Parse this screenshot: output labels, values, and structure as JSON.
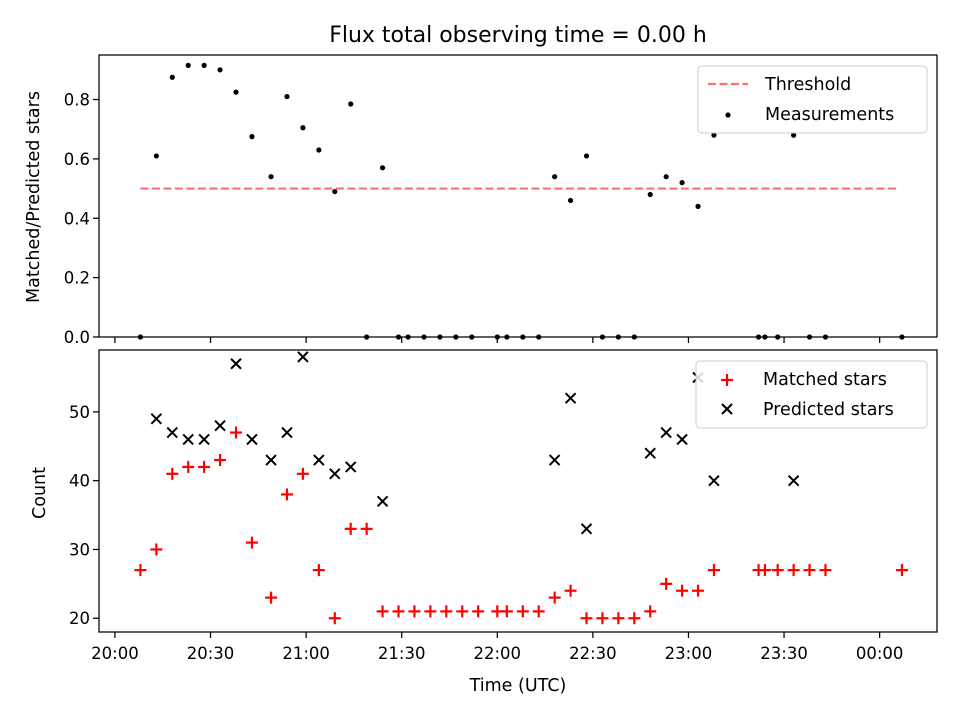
{
  "chart_data": [
    {
      "type": "scatter",
      "title": "Flux total observing time = 0.00 h",
      "xlabel": "",
      "ylabel": "Matched/Predicted stars",
      "xlim": [
        "19:55",
        "00:18"
      ],
      "ylim": [
        0,
        0.95
      ],
      "yticks": [
        "0.0",
        "0.2",
        "0.4",
        "0.6",
        "0.8"
      ],
      "yvals": [
        0,
        0.2,
        0.4,
        0.6,
        0.8
      ],
      "legend_position": "upper right",
      "threshold": {
        "name": "Threshold",
        "value": 0.5,
        "x_start": "20:08",
        "x_end": "00:06",
        "color": "#ff6f6f",
        "style": "dashed"
      },
      "series": [
        {
          "name": "Measurements",
          "color": "#000000",
          "marker": "dot",
          "x": [
            "20:08",
            "20:13",
            "20:18",
            "20:23",
            "20:28",
            "20:33",
            "20:38",
            "20:43",
            "20:49",
            "20:54",
            "20:59",
            "21:04",
            "21:09",
            "21:14",
            "21:19",
            "21:24",
            "21:29",
            "21:32",
            "21:37",
            "21:42",
            "21:47",
            "21:52",
            "22:00",
            "22:03",
            "22:08",
            "22:13",
            "22:18",
            "22:23",
            "22:28",
            "22:33",
            "22:38",
            "22:43",
            "22:48",
            "22:53",
            "22:58",
            "23:03",
            "23:08",
            "23:22",
            "23:24",
            "23:28",
            "23:33",
            "23:38",
            "23:43",
            "00:07"
          ],
          "y": [
            0.0,
            0.61,
            0.875,
            0.915,
            0.915,
            0.9,
            0.825,
            0.675,
            0.54,
            0.81,
            0.705,
            0.63,
            0.49,
            0.785,
            0.0,
            0.57,
            0.0,
            0.0,
            0.0,
            0.0,
            0.0,
            0.0,
            0.0,
            0.0,
            0.0,
            0.0,
            0.54,
            0.46,
            0.61,
            0.0,
            0.0,
            0.0,
            0.48,
            0.54,
            0.52,
            0.44,
            0.68,
            0.0,
            0.0,
            0.0,
            0.68,
            0.0,
            0.0,
            0.0
          ]
        }
      ]
    },
    {
      "type": "scatter",
      "title": "",
      "xlabel": "Time (UTC)",
      "ylabel": "Count",
      "xlim": [
        "19:55",
        "00:18"
      ],
      "ylim": [
        18,
        59
      ],
      "yticks": [
        "20",
        "30",
        "40",
        "50"
      ],
      "yvals": [
        20,
        30,
        40,
        50
      ],
      "xticks": [
        "20:00",
        "20:30",
        "21:00",
        "21:30",
        "22:00",
        "22:30",
        "23:00",
        "23:30",
        "00:00"
      ],
      "legend_position": "upper right",
      "series": [
        {
          "name": "Matched stars",
          "color": "#ff0000",
          "marker": "plus",
          "x": [
            "20:08",
            "20:13",
            "20:18",
            "20:23",
            "20:28",
            "20:33",
            "20:38",
            "20:43",
            "20:49",
            "20:54",
            "20:59",
            "21:04",
            "21:09",
            "21:14",
            "21:19",
            "21:24",
            "21:29",
            "21:34",
            "21:39",
            "21:44",
            "21:49",
            "21:54",
            "22:00",
            "22:03",
            "22:08",
            "22:13",
            "22:18",
            "22:23",
            "22:28",
            "22:33",
            "22:38",
            "22:43",
            "22:48",
            "22:53",
            "22:58",
            "23:03",
            "23:08",
            "23:22",
            "23:24",
            "23:28",
            "23:33",
            "23:38",
            "23:43",
            "00:07"
          ],
          "y": [
            27,
            30,
            41,
            42,
            42,
            43,
            47,
            31,
            23,
            38,
            41,
            27,
            20,
            33,
            33,
            21,
            21,
            21,
            21,
            21,
            21,
            21,
            21,
            21,
            21,
            21,
            23,
            24,
            20,
            20,
            20,
            20,
            21,
            25,
            24,
            24,
            27,
            27,
            27,
            27,
            27,
            27,
            27,
            27
          ]
        },
        {
          "name": "Predicted stars",
          "color": "#000000",
          "marker": "x",
          "x": [
            "20:13",
            "20:18",
            "20:23",
            "20:28",
            "20:33",
            "20:38",
            "20:43",
            "20:49",
            "20:54",
            "20:59",
            "21:04",
            "21:09",
            "21:14",
            "21:24",
            "22:18",
            "22:23",
            "22:28",
            "22:48",
            "22:53",
            "22:58",
            "23:03",
            "23:08",
            "23:33"
          ],
          "y": [
            49,
            47,
            46,
            46,
            48,
            57,
            46,
            43,
            47,
            58,
            43,
            41,
            42,
            37,
            43,
            52,
            33,
            44,
            47,
            46,
            55,
            40,
            40
          ]
        }
      ]
    }
  ]
}
